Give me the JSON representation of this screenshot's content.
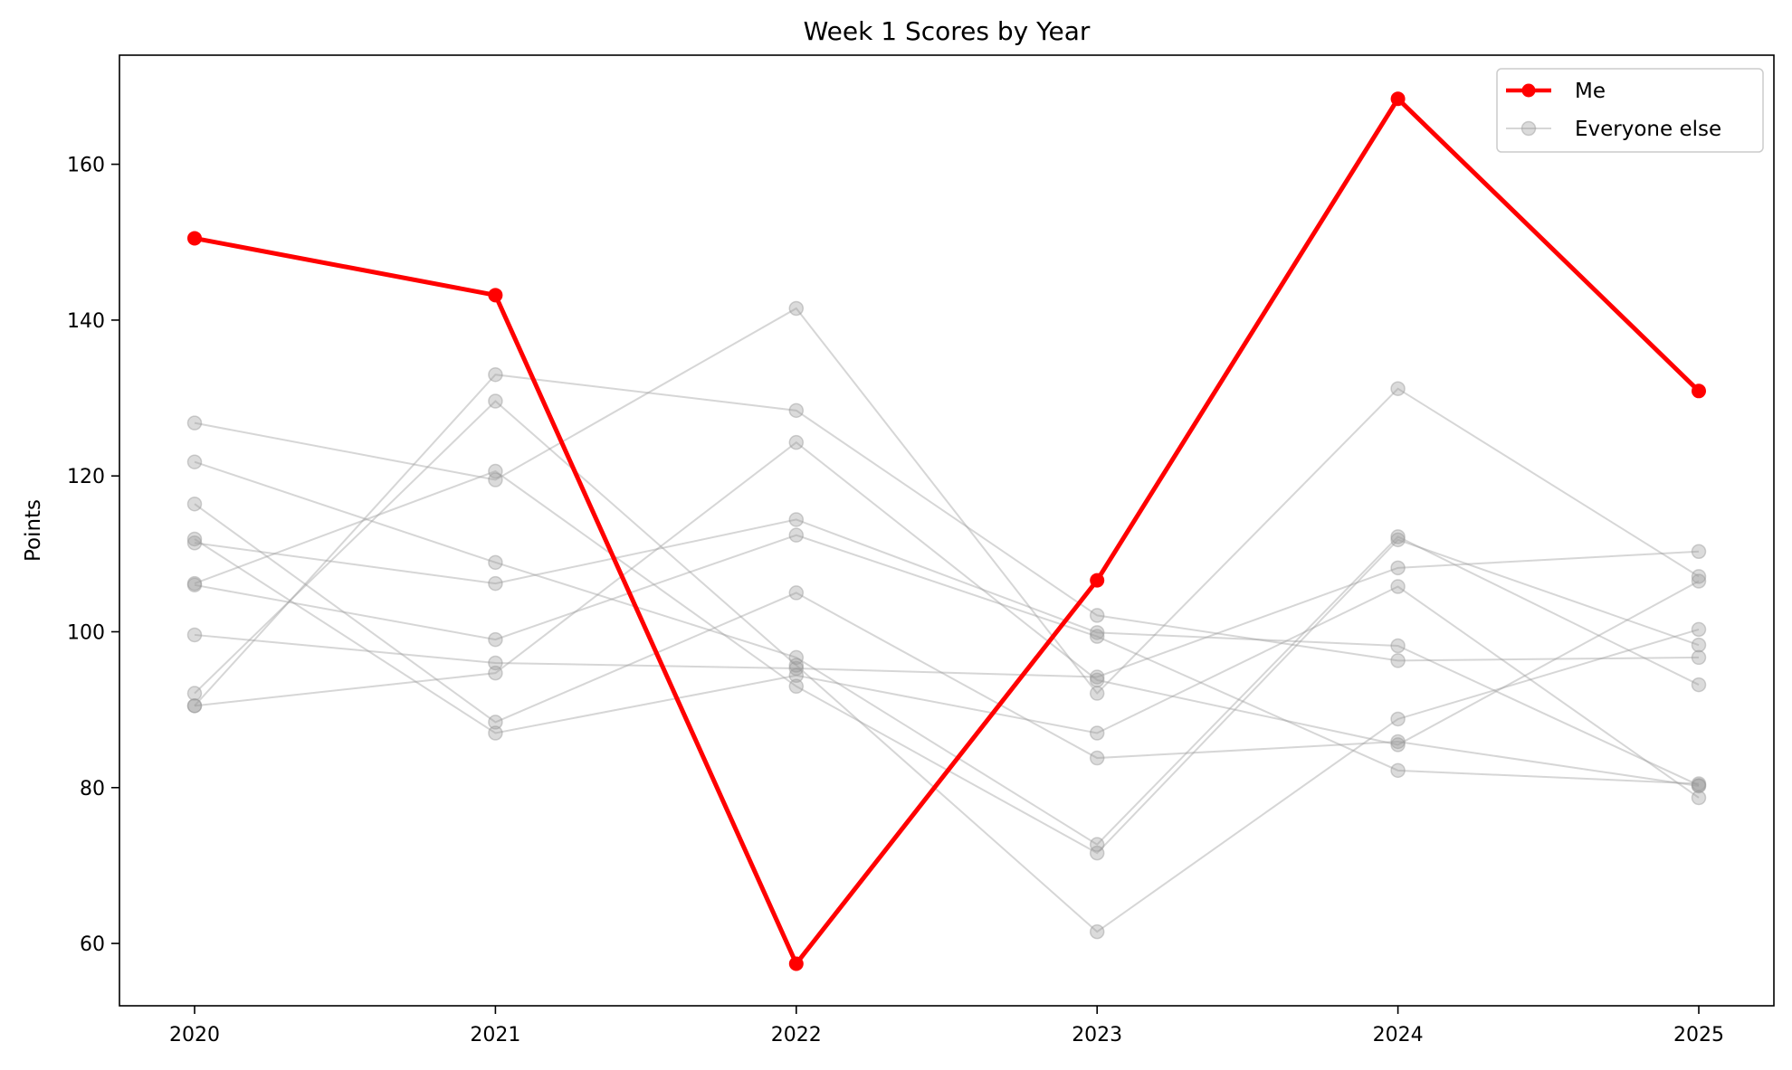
{
  "chart_data": {
    "type": "line",
    "title": "Week 1 Scores by Year",
    "xlabel": "",
    "ylabel": "Points",
    "x": [
      "2020",
      "2021",
      "2022",
      "2023",
      "2024",
      "2025"
    ],
    "ylim": [
      52,
      174
    ],
    "yticks": [
      60,
      80,
      100,
      120,
      140,
      160
    ],
    "grid": false,
    "legend_position": "top-right",
    "highlight_series": {
      "name": "Me",
      "color": "#ff0000",
      "values": [
        150.5,
        143.2,
        57.4,
        106.6,
        168.4,
        130.9
      ]
    },
    "background_series": {
      "name": "Everyone else",
      "color": "#999999",
      "lines": [
        [
          126.8,
          119.5,
          141.5,
          92.1,
          131.2,
          107.1
        ],
        [
          121.8,
          108.9,
          96.7,
          72.7,
          112.2,
          93.2
        ],
        [
          116.4,
          88.4,
          105.0,
          83.8,
          85.9,
          80.2
        ],
        [
          111.9,
          87.0,
          94.4,
          87.0,
          105.8,
          78.7
        ],
        [
          111.4,
          106.2,
          114.4,
          99.9,
          98.2,
          80.3
        ],
        [
          106.2,
          120.6,
          93.0,
          71.6,
          111.8,
          98.3
        ],
        [
          106.0,
          99.0,
          112.4,
          99.4,
          82.2,
          80.5
        ],
        [
          99.6,
          96.0,
          95.3,
          94.2,
          108.2,
          110.3
        ],
        [
          92.1,
          129.6,
          95.7,
          61.5,
          88.8,
          100.3
        ],
        [
          90.5,
          94.7,
          124.3,
          93.8,
          85.5,
          106.5
        ],
        [
          90.5,
          133.0,
          128.4,
          102.1,
          96.3,
          96.7
        ]
      ]
    }
  }
}
